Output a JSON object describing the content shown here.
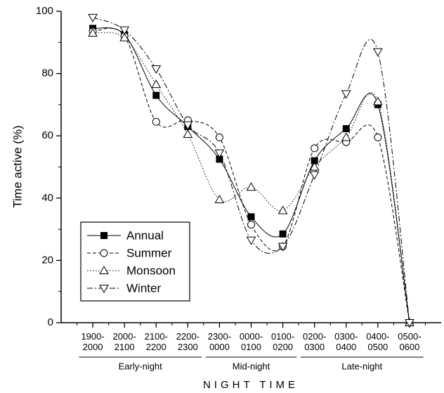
{
  "chart_data": {
    "type": "line",
    "y_label": "Time active (%)",
    "x_label": "NIGHT TIME",
    "categories": [
      "1900-2000",
      "2000-2100",
      "2100-2200",
      "2200-2300",
      "2300-0000",
      "0000-0100",
      "0100-0200",
      "0200-0300",
      "0300-0400",
      "0400-0500",
      "0500-0600"
    ],
    "group_labels": [
      "Early-night",
      "Mid-night",
      "Late-night"
    ],
    "series": [
      {
        "name": "Annual",
        "color": "#000000",
        "values": [
          94.5,
          92.5,
          73,
          63,
          52.5,
          34,
          28.5,
          52,
          62.3,
          70,
          0
        ]
      },
      {
        "name": "Summer",
        "color": "#000000",
        "values": [
          93.5,
          92,
          64.5,
          65,
          59.5,
          31.5,
          24.5,
          56,
          58,
          59.5,
          0
        ]
      },
      {
        "name": "Monsoon",
        "color": "#000000",
        "values": [
          93,
          91.5,
          76.5,
          60.5,
          39.5,
          43.5,
          36,
          50,
          59.5,
          71,
          0
        ]
      },
      {
        "name": "Winter",
        "color": "#000000",
        "values": [
          98,
          94,
          81.5,
          63.5,
          54.5,
          26.5,
          24.5,
          47.5,
          73.5,
          87,
          0
        ]
      }
    ],
    "ylim": [
      0,
      100
    ],
    "yticks": [
      0,
      20,
      40,
      60,
      80,
      100
    ],
    "grid": false,
    "legend": "lower left"
  }
}
